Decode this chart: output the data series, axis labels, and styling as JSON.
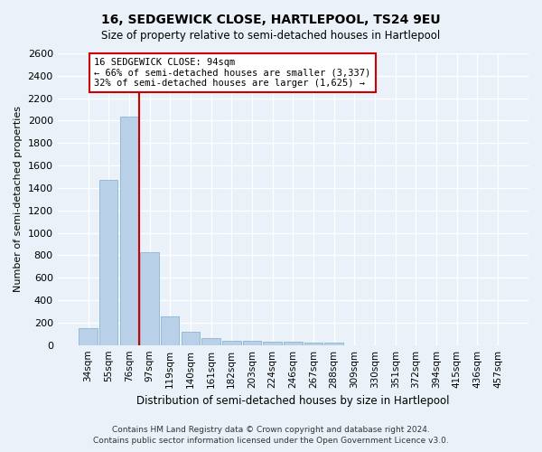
{
  "title": "16, SEDGEWICK CLOSE, HARTLEPOOL, TS24 9EU",
  "subtitle": "Size of property relative to semi-detached houses in Hartlepool",
  "xlabel": "Distribution of semi-detached houses by size in Hartlepool",
  "ylabel": "Number of semi-detached properties",
  "footer_line1": "Contains HM Land Registry data © Crown copyright and database right 2024.",
  "footer_line2": "Contains public sector information licensed under the Open Government Licence v3.0.",
  "bar_labels": [
    "34sqm",
    "55sqm",
    "76sqm",
    "97sqm",
    "119sqm",
    "140sqm",
    "161sqm",
    "182sqm",
    "203sqm",
    "224sqm",
    "246sqm",
    "267sqm",
    "288sqm",
    "309sqm",
    "330sqm",
    "351sqm",
    "372sqm",
    "394sqm",
    "415sqm",
    "436sqm",
    "457sqm"
  ],
  "bar_values": [
    150,
    1470,
    2040,
    830,
    255,
    115,
    65,
    40,
    35,
    30,
    30,
    25,
    20,
    0,
    0,
    0,
    0,
    0,
    0,
    0,
    0
  ],
  "bar_color": "#b8d0e8",
  "bar_edge_color": "#7aadcc",
  "background_color": "#eaf1f8",
  "grid_color": "#ffffff",
  "vline_index": 3,
  "vline_color": "#cc0000",
  "annotation_text_line1": "16 SEDGEWICK CLOSE: 94sqm",
  "annotation_text_line2": "← 66% of semi-detached houses are smaller (3,337)",
  "annotation_text_line3": "32% of semi-detached houses are larger (1,625) →",
  "annotation_box_facecolor": "#ffffff",
  "annotation_box_edgecolor": "#cc0000",
  "ylim": [
    0,
    2600
  ],
  "yticks": [
    0,
    200,
    400,
    600,
    800,
    1000,
    1200,
    1400,
    1600,
    1800,
    2000,
    2200,
    2400,
    2600
  ]
}
